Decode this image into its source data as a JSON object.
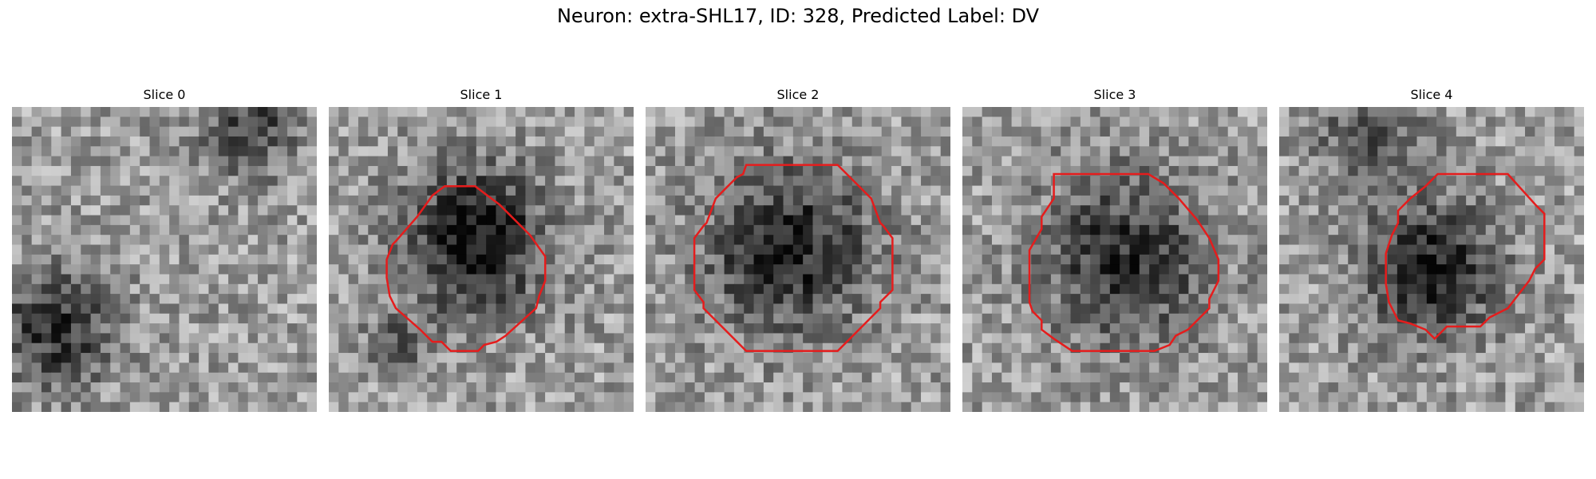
{
  "figure": {
    "title": "Neuron: extra-SHL17, ID: 328, Predicted Label: DV"
  },
  "contour_color": "#e51c1c",
  "panels": [
    {
      "title": "Slice 0",
      "has_contour": false
    },
    {
      "title": "Slice 1",
      "has_contour": true
    },
    {
      "title": "Slice 2",
      "has_contour": true
    },
    {
      "title": "Slice 3",
      "has_contour": true
    },
    {
      "title": "Slice 4",
      "has_contour": true
    }
  ]
}
